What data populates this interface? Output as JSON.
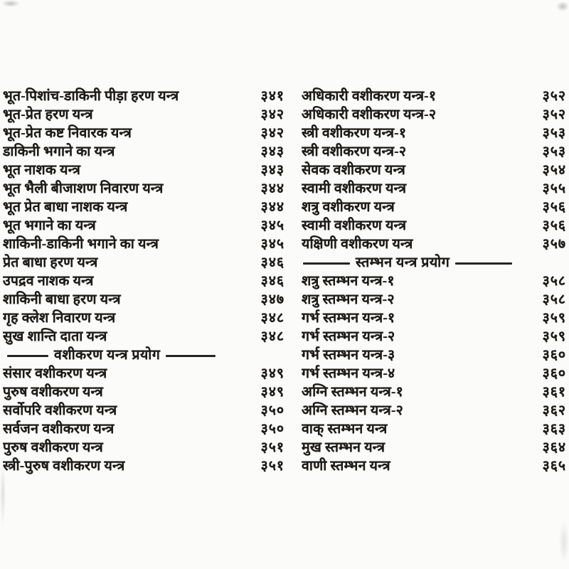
{
  "document": {
    "kind_label": "scanned-book-index-page",
    "ink_color": "#1d1b18",
    "paper_color": "#fbfbf9"
  },
  "columns": [
    {
      "side": "left",
      "rows": [
        {
          "type": "entry",
          "title": "भूत-पिशांच-डाकिनी पीड़ा हरण यन्त्र",
          "page": "३४१"
        },
        {
          "type": "entry",
          "title": "भूत-प्रेत हरण यन्त्र",
          "page": "३४२"
        },
        {
          "type": "entry",
          "title": "भूत-प्रेत कष्ट निवारक यन्त्र",
          "page": "३४२"
        },
        {
          "type": "entry",
          "title": "डाकिनी भगाने का यन्त्र",
          "page": "३४३"
        },
        {
          "type": "entry",
          "title": "भूत नाशक यन्त्र",
          "page": "३४३"
        },
        {
          "type": "entry",
          "title": "भूत भैली बीजाशण निवारण यन्त्र",
          "page": "३४४"
        },
        {
          "type": "entry",
          "title": "भूत प्रेत बाधा नाशक यन्त्र",
          "page": "३४४"
        },
        {
          "type": "entry",
          "title": "भूत भगाने का यन्त्र",
          "page": "३४५"
        },
        {
          "type": "entry",
          "title": "शाकिनी-डाकिनी भगाने का यन्त्र",
          "page": "३४५"
        },
        {
          "type": "entry",
          "title": "प्रेत बाधा हरण यन्त्र",
          "page": "३४६"
        },
        {
          "type": "entry",
          "title": "उपद्रव नाशक यन्त्र",
          "page": "३४६"
        },
        {
          "type": "entry",
          "title": "शाकिनी बाधा हरण यन्त्र",
          "page": "३४७"
        },
        {
          "type": "entry",
          "title": "गृह क्लेश निवारण यन्त्र",
          "page": "३४८"
        },
        {
          "type": "entry",
          "title": "सुख शान्ति दाता यन्त्र",
          "page": "३४८"
        },
        {
          "type": "section",
          "title": "वशीकरण यन्त्र प्रयोग"
        },
        {
          "type": "entry",
          "title": "संसार वशीकरण यन्त्र",
          "page": "३४९"
        },
        {
          "type": "entry",
          "title": "पुरुष वशीकरण यन्त्र",
          "page": "३४९"
        },
        {
          "type": "entry",
          "title": "सर्वोपरि वशीकरण यन्त्र",
          "page": "३५०"
        },
        {
          "type": "entry",
          "title": "सर्वजन वशीकरण यन्त्र",
          "page": "३५०"
        },
        {
          "type": "entry",
          "title": "पुरुष वशीकरण यन्त्र",
          "page": "३५१"
        },
        {
          "type": "entry",
          "title": "स्त्री-पुरुष वशीकरण यन्त्र",
          "page": "३५१"
        }
      ]
    },
    {
      "side": "right",
      "rows": [
        {
          "type": "entry",
          "title": "अधिकारी वशीकरण यन्त्र-१",
          "page": "३५२"
        },
        {
          "type": "entry",
          "title": "अधिकारी वशीकरण यन्त्र-२",
          "page": "३५२"
        },
        {
          "type": "entry",
          "title": "स्त्री वशीकरण यन्त्र-१",
          "page": "३५३"
        },
        {
          "type": "entry",
          "title": "स्त्री वशीकरण यन्त्र-२",
          "page": "३५३"
        },
        {
          "type": "entry",
          "title": "सेवक वशीकरण यन्त्र",
          "page": "३५४"
        },
        {
          "type": "entry",
          "title": "स्वामी वशीकरण यन्त्र",
          "page": "३५५"
        },
        {
          "type": "entry",
          "title": "शत्रु वशीकरण यन्त्र",
          "page": "३५६"
        },
        {
          "type": "entry",
          "title": "स्वामी वशीकरण यन्त्र",
          "page": "३५६"
        },
        {
          "type": "entry",
          "title": "यक्षिणी वशीकरण यन्त्र",
          "page": "३५७"
        },
        {
          "type": "section",
          "title": "स्तम्भन यन्त्र प्रयोग"
        },
        {
          "type": "entry",
          "title": "शत्रु स्तम्भन यन्त्र-१",
          "page": "३५८"
        },
        {
          "type": "entry",
          "title": "शत्रु स्तम्भन यन्त्र-२",
          "page": "३५८"
        },
        {
          "type": "entry",
          "title": "गर्भ स्तम्भन यन्त्र-१",
          "page": "३५९"
        },
        {
          "type": "entry",
          "title": "गर्भ स्तम्भन यन्त्र-२",
          "page": "३५९"
        },
        {
          "type": "entry",
          "title": "गर्भ स्तम्भन यन्त्र-३",
          "page": "३६०"
        },
        {
          "type": "entry",
          "title": "गर्भ स्तम्भन यन्त्र-४",
          "page": "३६०"
        },
        {
          "type": "entry",
          "title": "अग्नि स्तम्भन यन्त्र-१",
          "page": "३६१"
        },
        {
          "type": "entry",
          "title": "अग्नि स्तम्भन यन्त्र-२",
          "page": "३६२"
        },
        {
          "type": "entry",
          "title": "वाक् स्तम्भन यन्त्र",
          "page": "३६३"
        },
        {
          "type": "entry",
          "title": "मुख स्तम्भन यन्त्र",
          "page": "३६४"
        },
        {
          "type": "entry",
          "title": "वाणी स्तम्भन यन्त्र",
          "page": "३६५"
        }
      ]
    }
  ]
}
